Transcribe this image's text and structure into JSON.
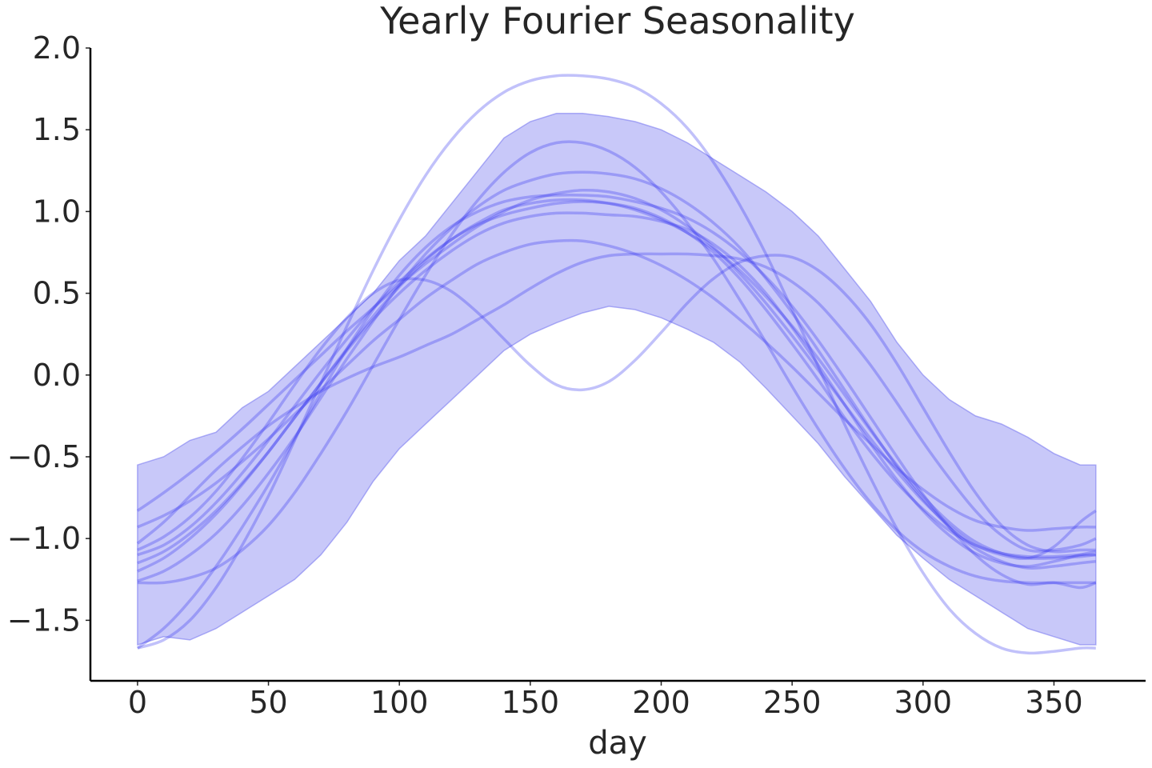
{
  "chart_data": {
    "type": "line",
    "title": "Yearly Fourier Seasonality",
    "xlabel": "day",
    "ylabel": "",
    "xlim": [
      -18,
      385
    ],
    "ylim": [
      -1.87,
      2.0
    ],
    "xticks": [
      0,
      50,
      100,
      150,
      200,
      250,
      300,
      350
    ],
    "yticks": [
      -1.5,
      -1.0,
      -0.5,
      0.0,
      0.5,
      1.0,
      1.5,
      2.0
    ],
    "xtick_labels": [
      "0",
      "50",
      "100",
      "150",
      "200",
      "250",
      "300",
      "350"
    ],
    "ytick_labels": [
      "−1.5",
      "−1.0",
      "−0.5",
      "0.0",
      "0.5",
      "1.0",
      "1.5",
      "2.0"
    ],
    "grid": false,
    "colors": {
      "line": "#3333ee",
      "band": "#7b7bf0"
    },
    "band": {
      "x": [
        0,
        10,
        20,
        30,
        40,
        50,
        60,
        70,
        80,
        90,
        100,
        110,
        120,
        130,
        140,
        150,
        160,
        170,
        180,
        190,
        200,
        210,
        220,
        230,
        240,
        250,
        260,
        270,
        280,
        290,
        300,
        310,
        320,
        330,
        340,
        350,
        360,
        366
      ],
      "upper": [
        -0.55,
        -0.5,
        -0.4,
        -0.35,
        -0.2,
        -0.1,
        0.05,
        0.2,
        0.35,
        0.5,
        0.7,
        0.85,
        1.05,
        1.25,
        1.45,
        1.55,
        1.6,
        1.6,
        1.58,
        1.55,
        1.5,
        1.42,
        1.32,
        1.22,
        1.12,
        1.0,
        0.85,
        0.65,
        0.45,
        0.2,
        0.0,
        -0.15,
        -0.25,
        -0.3,
        -0.38,
        -0.48,
        -0.55,
        -0.55
      ],
      "lower": [
        -1.65,
        -1.6,
        -1.62,
        -1.55,
        -1.45,
        -1.35,
        -1.25,
        -1.1,
        -0.9,
        -0.65,
        -0.45,
        -0.3,
        -0.15,
        0.0,
        0.15,
        0.25,
        0.32,
        0.38,
        0.42,
        0.4,
        0.35,
        0.28,
        0.2,
        0.08,
        -0.08,
        -0.25,
        -0.42,
        -0.62,
        -0.8,
        -0.98,
        -1.12,
        -1.25,
        -1.35,
        -1.45,
        -1.55,
        -1.6,
        -1.65,
        -1.65
      ]
    },
    "series": [
      {
        "values": [
          -1.27,
          -1.27,
          -1.24,
          -1.18,
          -1.07,
          -0.92,
          -0.72,
          -0.48,
          -0.22,
          0.06,
          0.34,
          0.61,
          0.86,
          1.07,
          1.24,
          1.36,
          1.42,
          1.42,
          1.37,
          1.27,
          1.12,
          0.93,
          0.71,
          0.46,
          0.2,
          -0.07,
          -0.33,
          -0.57,
          -0.78,
          -0.95,
          -1.08,
          -1.17,
          -1.23,
          -1.26,
          -1.27,
          -1.27,
          -1.27,
          -1.27
        ]
      },
      {
        "values": [
          -1.67,
          -1.62,
          -1.5,
          -1.3,
          -1.04,
          -0.74,
          -0.4,
          -0.05,
          0.3,
          0.64,
          0.95,
          1.22,
          1.44,
          1.61,
          1.73,
          1.8,
          1.83,
          1.83,
          1.81,
          1.76,
          1.66,
          1.51,
          1.3,
          1.04,
          0.74,
          0.4,
          0.05,
          -0.3,
          -0.63,
          -0.94,
          -1.21,
          -1.43,
          -1.58,
          -1.67,
          -1.7,
          -1.69,
          -1.67,
          -1.67
        ]
      },
      {
        "values": [
          -1.1,
          -1.04,
          -0.93,
          -0.78,
          -0.6,
          -0.4,
          -0.19,
          0.02,
          0.22,
          0.41,
          0.57,
          0.71,
          0.83,
          0.92,
          0.98,
          1.02,
          1.05,
          1.06,
          1.05,
          1.02,
          0.96,
          0.87,
          0.75,
          0.59,
          0.4,
          0.19,
          -0.03,
          -0.26,
          -0.47,
          -0.66,
          -0.82,
          -0.95,
          -1.04,
          -1.09,
          -1.11,
          -1.11,
          -1.1,
          -1.1
        ]
      },
      {
        "values": [
          -0.93,
          -0.86,
          -0.77,
          -0.66,
          -0.53,
          -0.39,
          -0.24,
          -0.09,
          0.06,
          0.21,
          0.34,
          0.47,
          0.58,
          0.68,
          0.75,
          0.8,
          0.82,
          0.82,
          0.79,
          0.74,
          0.67,
          0.58,
          0.47,
          0.34,
          0.2,
          0.05,
          -0.11,
          -0.27,
          -0.42,
          -0.57,
          -0.7,
          -0.81,
          -0.89,
          -0.93,
          -0.95,
          -0.94,
          -0.93,
          -0.93
        ]
      },
      {
        "values": [
          -0.83,
          -0.72,
          -0.6,
          -0.47,
          -0.33,
          -0.18,
          -0.03,
          0.12,
          0.27,
          0.41,
          0.55,
          0.68,
          0.8,
          0.91,
          1.0,
          1.07,
          1.11,
          1.13,
          1.12,
          1.08,
          1.01,
          0.91,
          0.78,
          0.62,
          0.44,
          0.24,
          0.03,
          -0.18,
          -0.39,
          -0.59,
          -0.77,
          -0.92,
          -1.04,
          -1.1,
          -1.12,
          -1.05,
          -0.9,
          -0.83
        ]
      },
      {
        "values": [
          -1.67,
          -1.55,
          -1.38,
          -1.17,
          -0.93,
          -0.67,
          -0.39,
          -0.11,
          0.16,
          0.4,
          0.61,
          0.78,
          0.91,
          1.0,
          1.06,
          1.09,
          1.1,
          1.1,
          1.09,
          1.06,
          1.02,
          0.96,
          0.87,
          0.75,
          0.6,
          0.42,
          0.21,
          -0.02,
          -0.26,
          -0.5,
          -0.73,
          -0.93,
          -1.1,
          -1.22,
          -1.28,
          -1.27,
          -1.3,
          -1.27
        ]
      },
      {
        "values": [
          -1.07,
          -0.99,
          -0.87,
          -0.71,
          -0.51,
          -0.29,
          -0.06,
          0.16,
          0.35,
          0.5,
          0.58,
          0.58,
          0.51,
          0.38,
          0.22,
          0.06,
          -0.06,
          -0.09,
          -0.04,
          0.09,
          0.26,
          0.44,
          0.59,
          0.69,
          0.73,
          0.72,
          0.64,
          0.5,
          0.31,
          0.07,
          -0.2,
          -0.47,
          -0.72,
          -0.92,
          -1.04,
          -1.08,
          -1.07,
          -1.07
        ]
      },
      {
        "values": [
          -1.2,
          -1.12,
          -1.0,
          -0.85,
          -0.67,
          -0.47,
          -0.26,
          -0.05,
          0.15,
          0.34,
          0.5,
          0.64,
          0.76,
          0.86,
          0.93,
          0.97,
          0.99,
          0.99,
          0.98,
          0.97,
          0.94,
          0.89,
          0.8,
          0.67,
          0.5,
          0.29,
          0.06,
          -0.18,
          -0.42,
          -0.64,
          -0.83,
          -0.98,
          -1.09,
          -1.15,
          -1.17,
          -1.14,
          -1.1,
          -1.08
        ]
      },
      {
        "values": [
          -1.03,
          -0.9,
          -0.74,
          -0.58,
          -0.44,
          -0.31,
          -0.2,
          -0.1,
          -0.02,
          0.05,
          0.11,
          0.18,
          0.25,
          0.34,
          0.43,
          0.53,
          0.62,
          0.69,
          0.73,
          0.74,
          0.74,
          0.74,
          0.73,
          0.71,
          0.66,
          0.57,
          0.44,
          0.26,
          0.06,
          -0.17,
          -0.41,
          -0.63,
          -0.83,
          -0.98,
          -1.07,
          -1.07,
          -1.04,
          -1.0
        ]
      },
      {
        "values": [
          -1.26,
          -1.2,
          -1.1,
          -0.97,
          -0.8,
          -0.6,
          -0.38,
          -0.14,
          0.1,
          0.33,
          0.55,
          0.74,
          0.9,
          1.03,
          1.13,
          1.19,
          1.23,
          1.24,
          1.23,
          1.2,
          1.14,
          1.05,
          0.93,
          0.78,
          0.59,
          0.38,
          0.15,
          -0.09,
          -0.33,
          -0.56,
          -0.76,
          -0.93,
          -1.06,
          -1.14,
          -1.18,
          -1.17,
          -1.15,
          -1.14
        ]
      },
      {
        "values": [
          -1.15,
          -1.08,
          -0.97,
          -0.83,
          -0.66,
          -0.47,
          -0.26,
          -0.05,
          0.16,
          0.36,
          0.54,
          0.7,
          0.83,
          0.93,
          1.01,
          1.05,
          1.07,
          1.07,
          1.05,
          1.01,
          0.95,
          0.87,
          0.77,
          0.64,
          0.48,
          0.3,
          0.1,
          -0.12,
          -0.34,
          -0.55,
          -0.74,
          -0.9,
          -1.02,
          -1.09,
          -1.12,
          -1.12,
          -1.11,
          -1.1
        ]
      }
    ]
  }
}
